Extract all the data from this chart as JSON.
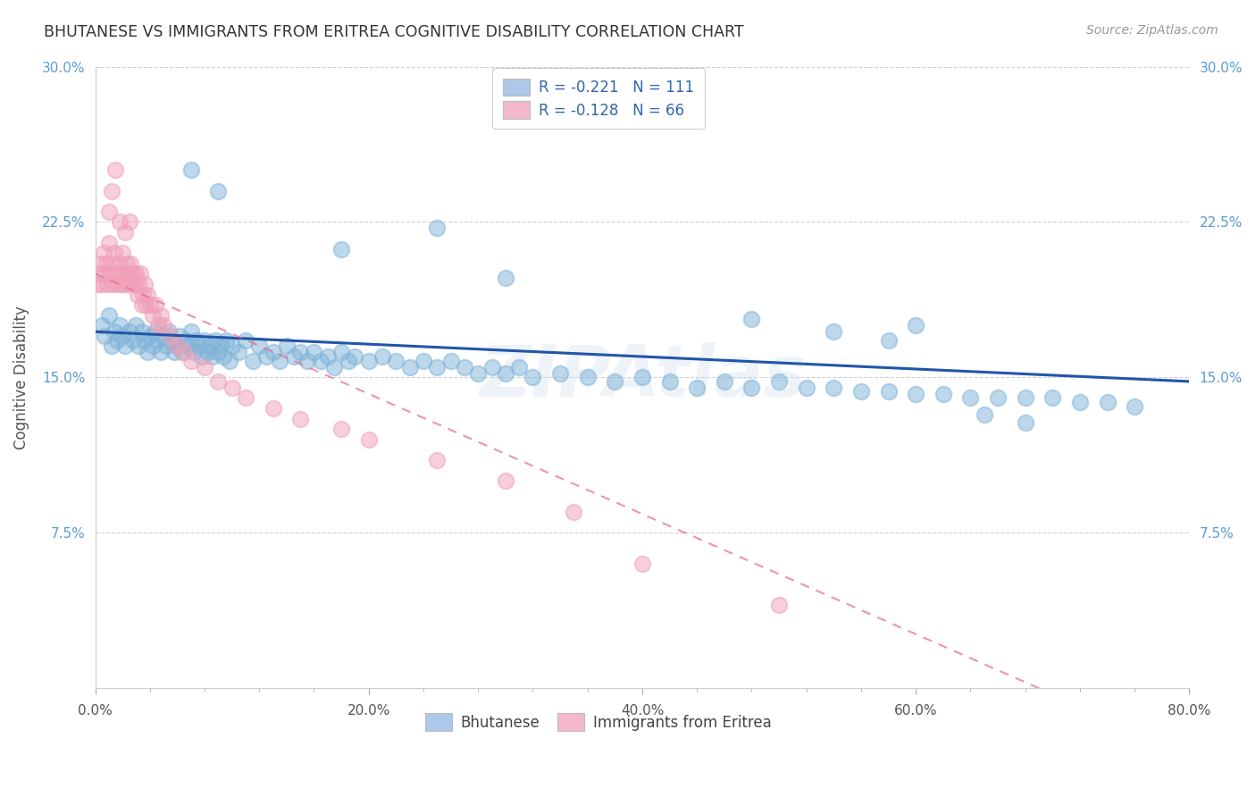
{
  "title": "BHUTANESE VS IMMIGRANTS FROM ERITREA COGNITIVE DISABILITY CORRELATION CHART",
  "source": "Source: ZipAtlas.com",
  "ylabel": "Cognitive Disability",
  "xmin": 0.0,
  "xmax": 0.8,
  "ymin": 0.0,
  "ymax": 0.3,
  "yticks": [
    0.075,
    0.15,
    0.225,
    0.3
  ],
  "ytick_labels": [
    "7.5%",
    "15.0%",
    "22.5%",
    "30.0%"
  ],
  "xtick_labels": [
    "0.0%",
    "",
    "",
    "",
    "",
    "20.0%",
    "",
    "",
    "",
    "",
    "40.0%",
    "",
    "",
    "",
    "",
    "60.0%",
    "",
    "",
    "",
    "",
    "80.0%"
  ],
  "xticks": [
    0.0,
    0.04,
    0.08,
    0.12,
    0.16,
    0.2,
    0.24,
    0.28,
    0.32,
    0.36,
    0.4,
    0.44,
    0.48,
    0.52,
    0.56,
    0.6,
    0.64,
    0.68,
    0.72,
    0.76,
    0.8
  ],
  "major_xticks": [
    0.0,
    0.2,
    0.4,
    0.6,
    0.8
  ],
  "major_xtick_labels": [
    "0.0%",
    "20.0%",
    "40.0%",
    "60.0%",
    "80.0%"
  ],
  "legend_entries": [
    {
      "label": "R = -0.221   N = 111",
      "color": "#adc8e8"
    },
    {
      "label": "R = -0.128   N = 66",
      "color": "#f4b8cc"
    }
  ],
  "legend_labels_bottom": [
    "Bhutanese",
    "Immigrants from Eritrea"
  ],
  "blue_color": "#7fb3d8",
  "pink_color": "#f0a0b8",
  "blue_line_color": "#2255aa",
  "pink_line_color": "#e87090",
  "watermark": "ZIPAtlas",
  "blue_intercept": 0.172,
  "blue_slope": -0.03,
  "pink_intercept": 0.2,
  "pink_slope": -0.29,
  "blue_scatter_x": [
    0.005,
    0.007,
    0.01,
    0.012,
    0.014,
    0.016,
    0.018,
    0.02,
    0.022,
    0.025,
    0.028,
    0.03,
    0.032,
    0.034,
    0.036,
    0.038,
    0.04,
    0.042,
    0.044,
    0.046,
    0.048,
    0.05,
    0.052,
    0.054,
    0.056,
    0.058,
    0.06,
    0.062,
    0.064,
    0.066,
    0.068,
    0.07,
    0.072,
    0.074,
    0.076,
    0.078,
    0.08,
    0.082,
    0.084,
    0.086,
    0.088,
    0.09,
    0.092,
    0.094,
    0.096,
    0.098,
    0.1,
    0.105,
    0.11,
    0.115,
    0.12,
    0.125,
    0.13,
    0.135,
    0.14,
    0.145,
    0.15,
    0.155,
    0.16,
    0.165,
    0.17,
    0.175,
    0.18,
    0.185,
    0.19,
    0.2,
    0.21,
    0.22,
    0.23,
    0.24,
    0.25,
    0.26,
    0.27,
    0.28,
    0.29,
    0.3,
    0.31,
    0.32,
    0.34,
    0.36,
    0.38,
    0.4,
    0.42,
    0.44,
    0.46,
    0.48,
    0.5,
    0.52,
    0.54,
    0.56,
    0.58,
    0.6,
    0.62,
    0.64,
    0.66,
    0.68,
    0.7,
    0.72,
    0.74,
    0.76,
    0.07,
    0.09,
    0.3,
    0.25,
    0.18,
    0.48,
    0.54,
    0.58,
    0.6,
    0.65,
    0.68
  ],
  "blue_scatter_y": [
    0.175,
    0.17,
    0.18,
    0.165,
    0.172,
    0.168,
    0.175,
    0.17,
    0.165,
    0.172,
    0.168,
    0.175,
    0.165,
    0.172,
    0.168,
    0.162,
    0.17,
    0.165,
    0.172,
    0.168,
    0.162,
    0.17,
    0.165,
    0.172,
    0.168,
    0.162,
    0.165,
    0.17,
    0.162,
    0.168,
    0.165,
    0.172,
    0.162,
    0.168,
    0.165,
    0.16,
    0.168,
    0.162,
    0.165,
    0.16,
    0.168,
    0.162,
    0.165,
    0.16,
    0.168,
    0.158,
    0.165,
    0.162,
    0.168,
    0.158,
    0.165,
    0.16,
    0.162,
    0.158,
    0.165,
    0.16,
    0.162,
    0.158,
    0.162,
    0.158,
    0.16,
    0.155,
    0.162,
    0.158,
    0.16,
    0.158,
    0.16,
    0.158,
    0.155,
    0.158,
    0.155,
    0.158,
    0.155,
    0.152,
    0.155,
    0.152,
    0.155,
    0.15,
    0.152,
    0.15,
    0.148,
    0.15,
    0.148,
    0.145,
    0.148,
    0.145,
    0.148,
    0.145,
    0.145,
    0.143,
    0.143,
    0.142,
    0.142,
    0.14,
    0.14,
    0.14,
    0.14,
    0.138,
    0.138,
    0.136,
    0.25,
    0.24,
    0.198,
    0.222,
    0.212,
    0.178,
    0.172,
    0.168,
    0.175,
    0.132,
    0.128
  ],
  "pink_scatter_x": [
    0.002,
    0.003,
    0.004,
    0.005,
    0.006,
    0.007,
    0.008,
    0.009,
    0.01,
    0.011,
    0.012,
    0.013,
    0.014,
    0.015,
    0.016,
    0.017,
    0.018,
    0.019,
    0.02,
    0.021,
    0.022,
    0.023,
    0.024,
    0.025,
    0.026,
    0.027,
    0.028,
    0.029,
    0.03,
    0.031,
    0.032,
    0.033,
    0.034,
    0.035,
    0.036,
    0.037,
    0.038,
    0.04,
    0.042,
    0.044,
    0.046,
    0.048,
    0.05,
    0.055,
    0.06,
    0.065,
    0.07,
    0.08,
    0.09,
    0.1,
    0.11,
    0.13,
    0.15,
    0.18,
    0.2,
    0.25,
    0.3,
    0.35,
    0.4,
    0.5,
    0.01,
    0.012,
    0.015,
    0.018,
    0.022,
    0.025
  ],
  "pink_scatter_y": [
    0.195,
    0.2,
    0.205,
    0.195,
    0.21,
    0.2,
    0.205,
    0.195,
    0.215,
    0.2,
    0.205,
    0.195,
    0.21,
    0.2,
    0.195,
    0.205,
    0.2,
    0.195,
    0.21,
    0.195,
    0.2,
    0.205,
    0.195,
    0.2,
    0.205,
    0.195,
    0.2,
    0.195,
    0.2,
    0.19,
    0.195,
    0.2,
    0.185,
    0.19,
    0.195,
    0.185,
    0.19,
    0.185,
    0.18,
    0.185,
    0.175,
    0.18,
    0.175,
    0.17,
    0.165,
    0.162,
    0.158,
    0.155,
    0.148,
    0.145,
    0.14,
    0.135,
    0.13,
    0.125,
    0.12,
    0.11,
    0.1,
    0.085,
    0.06,
    0.04,
    0.23,
    0.24,
    0.25,
    0.225,
    0.22,
    0.225
  ]
}
